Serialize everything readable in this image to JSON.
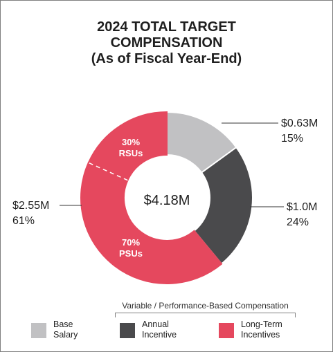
{
  "title_lines": [
    "2024 TOTAL TARGET",
    "COMPENSATION",
    "(As of Fiscal Year-End)"
  ],
  "chart_data": {
    "type": "pie",
    "variant": "donut",
    "center_label": "$4.18M",
    "slices": [
      {
        "key": "base",
        "value_label": "$0.63M",
        "percent_label": "15%",
        "share": 0.15,
        "color": "#c1c1c3"
      },
      {
        "key": "annual",
        "value_label": "$1.0M",
        "percent_label": "24%",
        "share": 0.24,
        "color": "#4a4a4c"
      },
      {
        "key": "psu",
        "inner_label": [
          "70%",
          "PSUs"
        ],
        "share": 0.427,
        "color": "#e5485e"
      },
      {
        "key": "rsu",
        "inner_label": [
          "30%",
          "RSUs"
        ],
        "share": 0.183,
        "color": "#e5485e"
      }
    ],
    "long_term_total": {
      "value_label": "$2.55M",
      "percent_label": "61%"
    }
  },
  "legend": {
    "heading": "Variable / Performance-Based Compensation",
    "items": [
      {
        "lines": [
          "Base",
          "Salary"
        ],
        "color": "#c1c1c3"
      },
      {
        "lines": [
          "Annual",
          "Incentive"
        ],
        "color": "#4a4a4c"
      },
      {
        "lines": [
          "Long-Term",
          "Incentives"
        ],
        "color": "#e5485e"
      }
    ]
  }
}
